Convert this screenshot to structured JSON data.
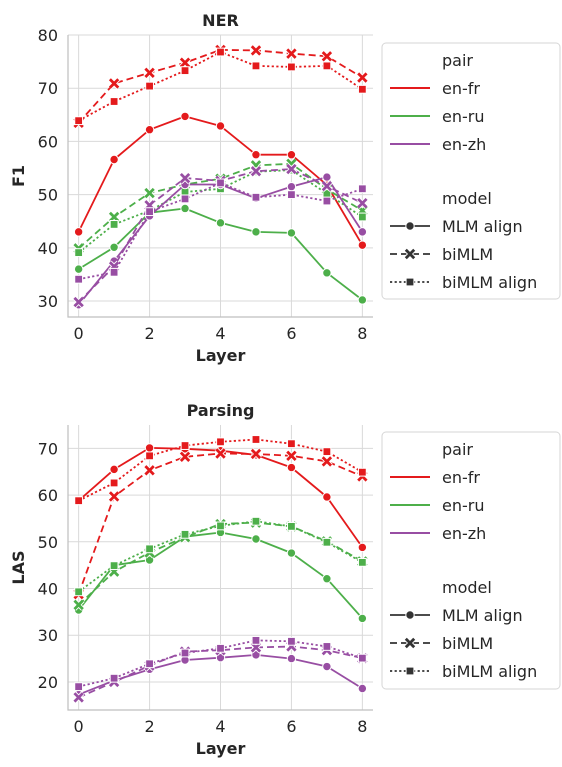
{
  "colors": {
    "en-fr": "#e41a1c",
    "en-ru": "#4daf4a",
    "en-zh": "#984ea3"
  },
  "chart_data": [
    {
      "type": "line",
      "title": "NER",
      "xlabel": "Layer",
      "ylabel": "F1",
      "xlim": [
        -0.3,
        8.3
      ],
      "ylim": [
        27,
        80
      ],
      "xticks": [
        0,
        2,
        4,
        6,
        8
      ],
      "yticks": [
        30,
        40,
        50,
        60,
        70,
        80
      ],
      "x": [
        0,
        1,
        2,
        3,
        4,
        5,
        6,
        7,
        8
      ],
      "grid": true,
      "legend_position": "right",
      "legend": {
        "pair_title": "pair",
        "pairs": [
          "en-fr",
          "en-ru",
          "en-zh"
        ],
        "model_title": "model",
        "models": [
          "MLM align",
          "biMLM",
          "biMLM align"
        ]
      },
      "series": [
        {
          "pair": "en-fr",
          "model": "MLM align",
          "values": [
            43.0,
            56.6,
            62.2,
            64.7,
            62.9,
            57.5,
            57.5,
            51.8,
            40.5
          ]
        },
        {
          "pair": "en-fr",
          "model": "biMLM",
          "values": [
            63.5,
            70.9,
            72.9,
            74.8,
            77.2,
            77.1,
            76.5,
            76.0,
            72.0
          ]
        },
        {
          "pair": "en-fr",
          "model": "biMLM align",
          "values": [
            63.9,
            67.5,
            70.4,
            73.3,
            76.8,
            74.2,
            74.0,
            74.2,
            69.8
          ]
        },
        {
          "pair": "en-ru",
          "model": "MLM align",
          "values": [
            36.0,
            40.1,
            46.6,
            47.4,
            44.7,
            43.0,
            42.8,
            35.3,
            30.2
          ]
        },
        {
          "pair": "en-ru",
          "model": "biMLM",
          "values": [
            39.9,
            45.8,
            50.3,
            51.9,
            53.0,
            55.5,
            55.8,
            51.0,
            47.0
          ]
        },
        {
          "pair": "en-ru",
          "model": "biMLM align",
          "values": [
            39.1,
            44.4,
            47.0,
            50.5,
            51.1,
            54.3,
            54.6,
            50.2,
            45.8
          ]
        },
        {
          "pair": "en-zh",
          "model": "MLM align",
          "values": [
            29.3,
            37.5,
            46.0,
            51.9,
            51.9,
            49.3,
            51.5,
            53.3,
            43.0
          ]
        },
        {
          "pair": "en-zh",
          "model": "biMLM",
          "values": [
            29.8,
            36.5,
            48.0,
            53.1,
            52.6,
            54.4,
            54.8,
            51.6,
            48.4
          ]
        },
        {
          "pair": "en-zh",
          "model": "biMLM align",
          "values": [
            34.1,
            35.4,
            46.8,
            49.2,
            52.2,
            49.5,
            50.0,
            48.8,
            51.1
          ]
        }
      ]
    },
    {
      "type": "line",
      "title": "Parsing",
      "xlabel": "Layer",
      "ylabel": "LAS",
      "xlim": [
        -0.3,
        8.3
      ],
      "ylim": [
        14,
        75
      ],
      "xticks": [
        0,
        2,
        4,
        6,
        8
      ],
      "yticks": [
        20,
        30,
        40,
        50,
        60,
        70
      ],
      "x": [
        0,
        1,
        2,
        3,
        4,
        5,
        6,
        7,
        8
      ],
      "grid": true,
      "legend_position": "right",
      "legend": {
        "pair_title": "pair",
        "pairs": [
          "en-fr",
          "en-ru",
          "en-zh"
        ],
        "model_title": "model",
        "models": [
          "MLM align",
          "biMLM",
          "biMLM align"
        ]
      },
      "series": [
        {
          "pair": "en-fr",
          "model": "MLM align",
          "values": [
            58.8,
            65.5,
            70.1,
            69.9,
            69.5,
            68.6,
            65.9,
            59.6,
            48.8
          ]
        },
        {
          "pair": "en-fr",
          "model": "biMLM",
          "values": [
            38.8,
            59.7,
            65.3,
            68.2,
            68.9,
            68.8,
            68.4,
            67.2,
            64.0
          ]
        },
        {
          "pair": "en-fr",
          "model": "biMLM align",
          "values": [
            58.8,
            62.6,
            68.4,
            70.6,
            71.4,
            71.9,
            71.0,
            69.3,
            64.9
          ]
        },
        {
          "pair": "en-ru",
          "model": "MLM align",
          "values": [
            35.4,
            45.0,
            46.1,
            51.1,
            52.0,
            50.6,
            47.6,
            42.1,
            33.6
          ]
        },
        {
          "pair": "en-ru",
          "model": "biMLM",
          "values": [
            36.5,
            43.6,
            47.7,
            51.0,
            53.8,
            54.1,
            53.3,
            50.1,
            45.8
          ]
        },
        {
          "pair": "en-ru",
          "model": "biMLM align",
          "values": [
            39.3,
            44.9,
            48.5,
            51.6,
            53.4,
            54.4,
            53.3,
            49.9,
            45.6
          ]
        },
        {
          "pair": "en-zh",
          "model": "MLM align",
          "values": [
            17.3,
            20.3,
            22.7,
            24.7,
            25.2,
            25.8,
            25.0,
            23.3,
            18.6
          ]
        },
        {
          "pair": "en-zh",
          "model": "biMLM",
          "values": [
            16.7,
            20.0,
            23.5,
            26.5,
            26.8,
            27.4,
            27.6,
            26.8,
            25.1
          ]
        },
        {
          "pair": "en-zh",
          "model": "biMLM align",
          "values": [
            19.0,
            20.8,
            23.9,
            26.2,
            27.2,
            28.9,
            28.7,
            27.6,
            25.1
          ]
        }
      ]
    }
  ]
}
